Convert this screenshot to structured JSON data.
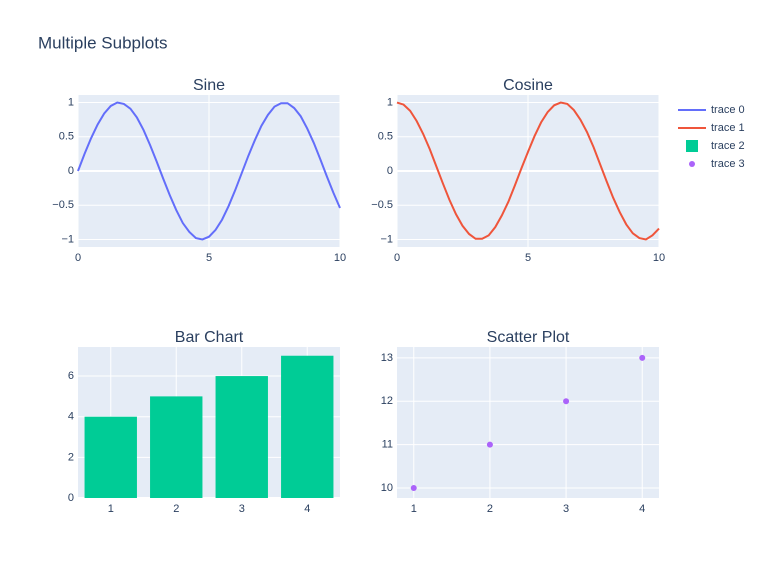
{
  "title": "Multiple Subplots",
  "chart_data": [
    {
      "type": "line",
      "title": "Sine",
      "x": [
        0,
        0.25,
        0.5,
        0.75,
        1,
        1.25,
        1.5,
        1.75,
        2,
        2.25,
        2.5,
        2.75,
        3,
        3.25,
        3.5,
        3.75,
        4,
        4.25,
        4.5,
        4.75,
        5,
        5.25,
        5.5,
        5.75,
        6,
        6.25,
        6.5,
        6.75,
        7,
        7.25,
        7.5,
        7.75,
        8,
        8.25,
        8.5,
        8.75,
        9,
        9.25,
        9.5,
        9.75,
        10
      ],
      "series": [
        {
          "name": "trace 0",
          "color": "#636efa",
          "values": [
            0,
            0.25,
            0.48,
            0.68,
            0.84,
            0.95,
            1.0,
            0.98,
            0.91,
            0.78,
            0.6,
            0.38,
            0.14,
            -0.11,
            -0.35,
            -0.57,
            -0.76,
            -0.89,
            -0.98,
            -1.0,
            -0.96,
            -0.86,
            -0.71,
            -0.51,
            -0.28,
            -0.03,
            0.22,
            0.45,
            0.66,
            0.82,
            0.94,
            0.99,
            0.99,
            0.92,
            0.8,
            0.62,
            0.41,
            0.17,
            -0.08,
            -0.32,
            -0.54
          ]
        }
      ],
      "xlim": [
        0,
        10
      ],
      "ylim": [
        -1.11,
        1.11
      ],
      "xticks": [
        0,
        5,
        10
      ],
      "yticks": [
        {
          "value": -1,
          "label": "−1"
        },
        {
          "value": -0.5,
          "label": "−0.5"
        },
        0,
        0.5,
        1
      ],
      "grid": true
    },
    {
      "type": "line",
      "title": "Cosine",
      "x": [
        0,
        0.25,
        0.5,
        0.75,
        1,
        1.25,
        1.5,
        1.75,
        2,
        2.25,
        2.5,
        2.75,
        3,
        3.25,
        3.5,
        3.75,
        4,
        4.25,
        4.5,
        4.75,
        5,
        5.25,
        5.5,
        5.75,
        6,
        6.25,
        6.5,
        6.75,
        7,
        7.25,
        7.5,
        7.75,
        8,
        8.25,
        8.5,
        8.75,
        9,
        9.25,
        9.5,
        9.75,
        10
      ],
      "series": [
        {
          "name": "trace 1",
          "color": "#ef553b",
          "values": [
            1,
            0.97,
            0.88,
            0.73,
            0.54,
            0.32,
            0.07,
            -0.18,
            -0.42,
            -0.63,
            -0.8,
            -0.92,
            -0.99,
            -0.99,
            -0.94,
            -0.82,
            -0.65,
            -0.45,
            -0.21,
            0.04,
            0.28,
            0.51,
            0.71,
            0.86,
            0.96,
            1.0,
            0.98,
            0.89,
            0.75,
            0.57,
            0.35,
            0.1,
            -0.15,
            -0.39,
            -0.6,
            -0.78,
            -0.91,
            -0.98,
            -1.0,
            -0.94,
            -0.84
          ]
        }
      ],
      "xlim": [
        0,
        10
      ],
      "ylim": [
        -1.11,
        1.11
      ],
      "xticks": [
        0,
        5,
        10
      ],
      "yticks": [
        {
          "value": -1,
          "label": "−1"
        },
        {
          "value": -0.5,
          "label": "−0.5"
        },
        0,
        0.5,
        1
      ],
      "grid": true
    },
    {
      "type": "bar",
      "title": "Bar Chart",
      "x": [
        1,
        2,
        3,
        4
      ],
      "series": [
        {
          "name": "trace 2",
          "color": "#00cc96",
          "values": [
            4,
            5,
            6,
            7
          ]
        }
      ],
      "xlim": [
        0.5,
        4.5
      ],
      "ylim": [
        0,
        7.43
      ],
      "xticks": [
        1,
        2,
        3,
        4
      ],
      "yticks": [
        0,
        2,
        4,
        6
      ],
      "grid": true
    },
    {
      "type": "scatter",
      "title": "Scatter Plot",
      "x": [
        1,
        2,
        3,
        4
      ],
      "series": [
        {
          "name": "trace 3",
          "color": "#ab63fa",
          "values": [
            10,
            11,
            12,
            13
          ]
        }
      ],
      "xlim": [
        0.78,
        4.22
      ],
      "ylim": [
        9.77,
        13.25
      ],
      "xticks": [
        1,
        2,
        3,
        4
      ],
      "yticks": [
        10,
        11,
        12,
        13
      ],
      "grid": true
    }
  ]
}
